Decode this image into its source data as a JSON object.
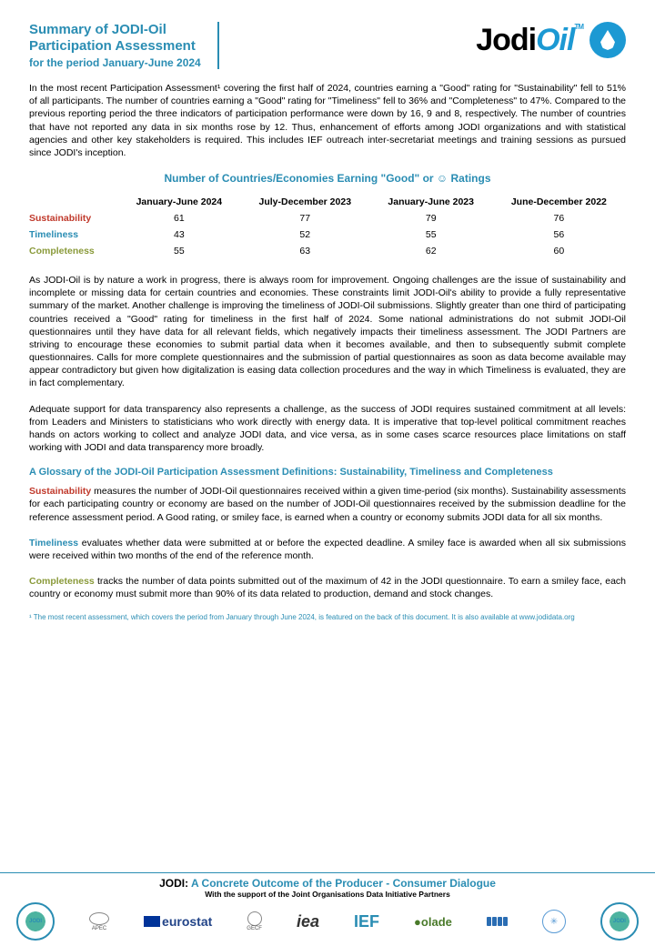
{
  "header": {
    "title_line1": "Summary of JODI-Oil",
    "title_line2": "Participation Assessment",
    "title_line3": "for the period January-June 2024",
    "logo_text1": "Jodi",
    "logo_text2": "Oil",
    "logo_tm": "TM"
  },
  "intro_para": "In the most recent Participation Assessment¹ covering the first half of 2024, countries earning a \"Good\" rating for \"Sustainability\" fell to 51% of all participants. The number of countries earning a \"Good\" rating for \"Timeliness\" fell to 36% and \"Completeness\" to 47%. Compared to the previous reporting period the three indicators of participation performance were down by 16, 9 and 8, respectively. The number of countries that have not reported any data in six months rose by 12. Thus, enhancement of efforts among JODI organizations and with statistical agencies and other key stakeholders is required. This includes IEF outreach inter-secretariat meetings and training sessions as pursued since JODI's inception.",
  "table_title": "Number of Countries/Economies Earning \"Good\" or ☺ Ratings",
  "table": {
    "periods": [
      "January-June 2024",
      "July-December 2023",
      "January-June 2023",
      "June-December 2022"
    ],
    "rows": [
      {
        "label": "Sustainability",
        "color": "#c0392b",
        "values": [
          61,
          77,
          79,
          76
        ]
      },
      {
        "label": "Timeliness",
        "color": "#2a8db3",
        "values": [
          43,
          52,
          55,
          56
        ]
      },
      {
        "label": "Completeness",
        "color": "#8a9a3a",
        "values": [
          55,
          63,
          62,
          60
        ]
      }
    ]
  },
  "para2": "As JODI-Oil is by nature a work in progress, there is always room for improvement. Ongoing challenges are the issue of sustainability and incomplete or missing data for certain countries and economies. These constraints limit JODI-Oil's ability to provide a fully representative summary of the market. Another challenge is improving the timeliness of JODI-Oil submissions. Slightly greater than one third of participating countries received a \"Good\" rating for timeliness in the first half of 2024. Some national administrations do not submit JODI-Oil questionnaires until they have data for all relevant fields, which negatively impacts their timeliness assessment. The JODI Partners are striving to encourage these economies to submit partial data when it becomes available, and then to subsequently submit complete questionnaires. Calls for more complete questionnaires and the submission of partial questionnaires as soon as data become available may appear contradictory but given how digitalization is easing data collection procedures and the way in which Timeliness is evaluated, they are in fact complementary.",
  "para3": "Adequate support for data transparency also represents a challenge, as the success of JODI requires sustained commitment at all levels: from Leaders and Ministers to statisticians who work directly with energy data. It is imperative that top-level political commitment reaches hands on actors working to collect and analyze JODI data, and vice versa, as in some cases scarce resources place limitations on staff working with JODI and data transparency more broadly.",
  "glossary_head": "A Glossary of the JODI-Oil Participation Assessment Definitions: Sustainability, Timeliness and Completeness",
  "gloss": {
    "sust_term": "Sustainability",
    "sust_body": " measures the number of JODI-Oil questionnaires received within a given time-period (six months). Sustainability assessments for each participating country or economy are based on the number of JODI-Oil questionnaires received by the submission deadline for the reference assessment period. A Good rating, or smiley face, is earned when a country or economy submits JODI data for all six months.",
    "time_term": "Timeliness",
    "time_body": " evaluates whether data were submitted at or before the expected deadline. A smiley face is awarded when all six submissions were received within two months of the end of the reference month.",
    "comp_term": "Completeness",
    "comp_body": " tracks the number of data points submitted out of the maximum of 42 in the JODI questionnaire. To earn a smiley face, each country or economy must submit more than 90% of its data related to production, demand and stock changes."
  },
  "footnote": "¹ The most recent assessment, which covers the period from January through June 2024, is featured on the back of this document. It is also available at www.jodidata.org",
  "footer": {
    "title_j": "JODI: ",
    "title_rest": "A Concrete Outcome of the Producer - Consumer Dialogue",
    "sub": "With the support of the Joint Organisations Data Initiative Partners",
    "partners": [
      "SUPPORT JODI",
      "APEC",
      "eurostat",
      "GECF",
      "iea",
      "IEF",
      "olade",
      "OPEC",
      "UN",
      "SUPPORT JODI"
    ]
  }
}
